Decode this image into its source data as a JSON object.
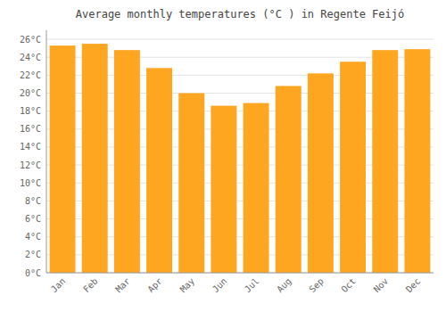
{
  "chart_data": {
    "type": "bar",
    "title": "Average monthly temperatures (°C ) in Regente Feijó",
    "categories": [
      "Jan",
      "Feb",
      "Mar",
      "Apr",
      "May",
      "Jun",
      "Jul",
      "Aug",
      "Sep",
      "Oct",
      "Nov",
      "Dec"
    ],
    "values": [
      25.3,
      25.5,
      24.8,
      22.8,
      20.0,
      18.6,
      18.9,
      20.8,
      22.2,
      23.5,
      24.8,
      24.9
    ],
    "color": "#FFA620",
    "ylim": [
      0,
      27
    ],
    "yticks": [
      {
        "value": 0,
        "label": "0°C"
      },
      {
        "value": 2,
        "label": "2°C"
      },
      {
        "value": 4,
        "label": "4°C"
      },
      {
        "value": 6,
        "label": "6°C"
      },
      {
        "value": 8,
        "label": "8°C"
      },
      {
        "value": 10,
        "label": "10°C"
      },
      {
        "value": 12,
        "label": "12°C"
      },
      {
        "value": 14,
        "label": "14°C"
      },
      {
        "value": 16,
        "label": "16°C"
      },
      {
        "value": 18,
        "label": "18°C"
      },
      {
        "value": 20,
        "label": "20°C"
      },
      {
        "value": 22,
        "label": "22°C"
      },
      {
        "value": 24,
        "label": "24°C"
      },
      {
        "value": 26,
        "label": "26°C"
      }
    ],
    "grid": true
  }
}
